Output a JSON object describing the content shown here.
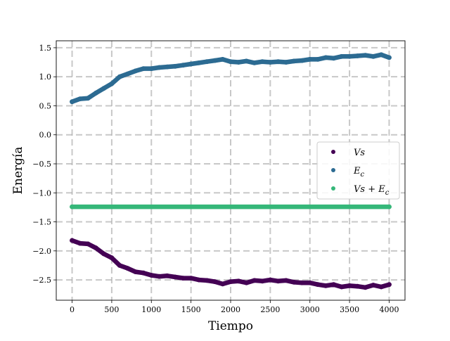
{
  "chart_data": {
    "type": "scatter",
    "title": "",
    "xlabel": "Tiempo",
    "ylabel": "Energía",
    "xlim": [
      -200,
      4200
    ],
    "ylim": [
      -2.85,
      1.62
    ],
    "xticks": [
      0,
      500,
      1000,
      1500,
      2000,
      2500,
      3000,
      3500,
      4000
    ],
    "xtick_labels": [
      "0",
      "500",
      "1000",
      "1500",
      "2000",
      "2500",
      "3000",
      "3500",
      "4000"
    ],
    "yticks": [
      1.5,
      1.0,
      0.5,
      0.0,
      -0.5,
      -1.0,
      -1.5,
      -2.0,
      -2.5
    ],
    "ytick_labels": [
      "1.5",
      "1.0",
      "0.5",
      "0.0",
      "−0.5",
      "−1.0",
      "−1.5",
      "−2.0",
      "−2.5"
    ],
    "grid": true,
    "legend_position": "center-right",
    "series": [
      {
        "name": "Vs",
        "color": "#440154",
        "x": [
          0,
          100,
          200,
          300,
          400,
          500,
          600,
          700,
          800,
          900,
          1000,
          1100,
          1200,
          1300,
          1400,
          1500,
          1600,
          1700,
          1800,
          1900,
          2000,
          2100,
          2200,
          2300,
          2400,
          2500,
          2600,
          2700,
          2800,
          2900,
          3000,
          3100,
          3200,
          3300,
          3400,
          3500,
          3600,
          3700,
          3800,
          3900,
          4000
        ],
        "y": [
          -1.82,
          -1.87,
          -1.88,
          -1.95,
          -2.05,
          -2.12,
          -2.25,
          -2.3,
          -2.36,
          -2.38,
          -2.42,
          -2.44,
          -2.43,
          -2.45,
          -2.47,
          -2.47,
          -2.5,
          -2.51,
          -2.53,
          -2.57,
          -2.53,
          -2.52,
          -2.55,
          -2.51,
          -2.52,
          -2.5,
          -2.52,
          -2.51,
          -2.54,
          -2.55,
          -2.55,
          -2.58,
          -2.6,
          -2.58,
          -2.62,
          -2.6,
          -2.61,
          -2.63,
          -2.59,
          -2.62,
          -2.58
        ]
      },
      {
        "name": "E_c",
        "color": "#2c6b92",
        "x": [
          0,
          100,
          200,
          300,
          400,
          500,
          600,
          700,
          800,
          900,
          1000,
          1100,
          1200,
          1300,
          1400,
          1500,
          1600,
          1700,
          1800,
          1900,
          2000,
          2100,
          2200,
          2300,
          2400,
          2500,
          2600,
          2700,
          2800,
          2900,
          3000,
          3100,
          3200,
          3300,
          3400,
          3500,
          3600,
          3700,
          3800,
          3900,
          4000
        ],
        "y": [
          0.57,
          0.62,
          0.63,
          0.72,
          0.8,
          0.88,
          1.0,
          1.05,
          1.1,
          1.14,
          1.14,
          1.16,
          1.17,
          1.18,
          1.2,
          1.22,
          1.24,
          1.26,
          1.28,
          1.3,
          1.26,
          1.25,
          1.27,
          1.24,
          1.26,
          1.25,
          1.26,
          1.25,
          1.27,
          1.28,
          1.3,
          1.3,
          1.33,
          1.32,
          1.35,
          1.35,
          1.36,
          1.37,
          1.35,
          1.38,
          1.33
        ]
      },
      {
        "name": "Vs+E_c",
        "color": "#35b779",
        "x": [
          0,
          4000
        ],
        "y": [
          -1.24,
          -1.24
        ]
      }
    ],
    "legend": [
      {
        "symbol": "Vs",
        "base": "Vs",
        "sub": "",
        "color": "#440154"
      },
      {
        "symbol": "E_c",
        "base": "E",
        "sub": "c",
        "color": "#2c6b92"
      },
      {
        "symbol": "Vs+E_c",
        "base": "Vs + E",
        "sub": "c",
        "color": "#35b779"
      }
    ]
  }
}
